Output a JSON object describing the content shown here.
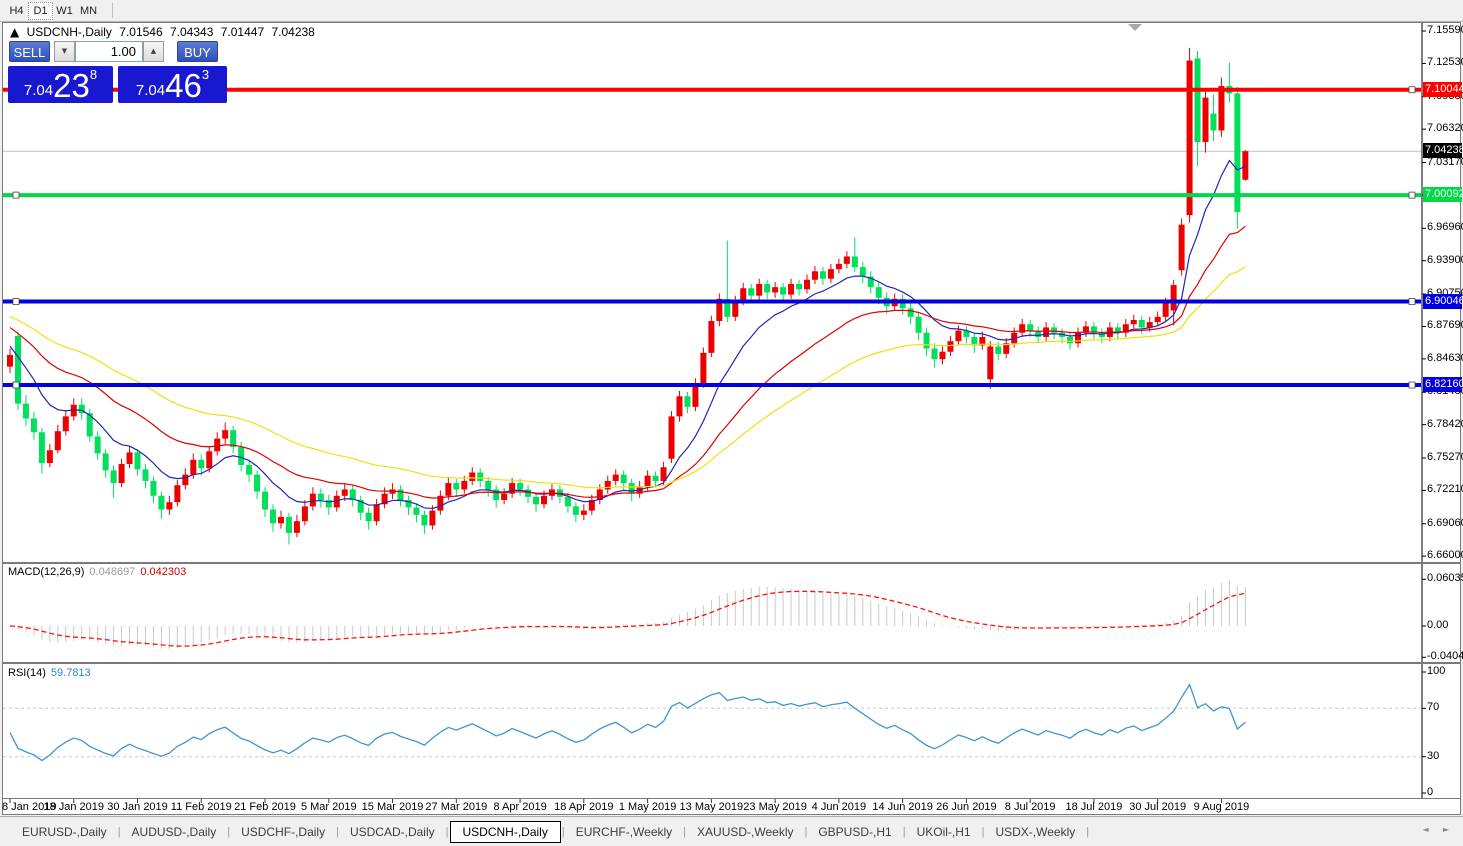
{
  "toolbar": {
    "timeframes": [
      {
        "label": "H4",
        "active": false
      },
      {
        "label": "D1",
        "active": true
      },
      {
        "label": "W1",
        "active": false
      },
      {
        "label": "MN",
        "active": false
      }
    ]
  },
  "chart_header": {
    "collapse_icon": "▲",
    "symbol": "USDCNH-,Daily",
    "open": "7.01546",
    "high": "7.04343",
    "low": "7.01447",
    "close": "7.04238"
  },
  "trade_panel": {
    "sell_label": "SELL",
    "buy_label": "BUY",
    "volume": "1.00",
    "down_arrow": "▼",
    "up_arrow": "▲",
    "sell_price": {
      "prefix": "7.04",
      "big": "23",
      "sup": "8"
    },
    "buy_price": {
      "prefix": "7.04",
      "big": "46",
      "sup": "3"
    }
  },
  "chart_data": {
    "type": "candlestick",
    "symbol": "USDCNH",
    "timeframe": "Daily",
    "colors": {
      "bull_candle": "#ec0000",
      "bear_candle": "#00e05c",
      "ma_fast": "#2323b4",
      "ma_mid": "#e00000",
      "ma_slow": "#f0e010",
      "macd_histogram": "#c9c9c9",
      "macd_signal": "#ff1010",
      "rsi_line": "#3e96d2",
      "current_price_line": "#c0c0c0"
    },
    "y_axis": {
      "range": [
        6.66,
        7.1559
      ],
      "current_price": 7.04238,
      "current_price_label": "7.04238",
      "ticks": [
        "7.15590",
        "7.12530",
        "7.09380",
        "7.06320",
        "7.03170",
        "7.00110",
        "6.96960",
        "6.93900",
        "6.90750",
        "6.87690",
        "6.84630",
        "6.81480",
        "6.78420",
        "6.75270",
        "6.72210",
        "6.69060",
        "6.66000"
      ]
    },
    "x_axis": {
      "labels": [
        {
          "text": "8 Jan 2019",
          "bar": 0
        },
        {
          "text": "18 Jan 2019",
          "bar": 8
        },
        {
          "text": "30 Jan 2019",
          "bar": 16
        },
        {
          "text": "11 Feb 2019",
          "bar": 24
        },
        {
          "text": "21 Feb 2019",
          "bar": 32
        },
        {
          "text": "5 Mar 2019",
          "bar": 40
        },
        {
          "text": "15 Mar 2019",
          "bar": 48
        },
        {
          "text": "27 Mar 2019",
          "bar": 56
        },
        {
          "text": "8 Apr 2019",
          "bar": 64
        },
        {
          "text": "18 Apr 2019",
          "bar": 72
        },
        {
          "text": "1 May 2019",
          "bar": 80
        },
        {
          "text": "13 May 2019",
          "bar": 88
        },
        {
          "text": "23 May 2019",
          "bar": 96
        },
        {
          "text": "4 Jun 2019",
          "bar": 104
        },
        {
          "text": "14 Jun 2019",
          "bar": 112
        },
        {
          "text": "26 Jun 2019",
          "bar": 120
        },
        {
          "text": "8 Jul 2019",
          "bar": 128
        },
        {
          "text": "18 Jul 2019",
          "bar": 136
        },
        {
          "text": "30 Jul 2019",
          "bar": 144
        },
        {
          "text": "9 Aug 2019",
          "bar": 152
        }
      ]
    },
    "horizontal_lines": [
      {
        "price": 7.10044,
        "label": "7.10044",
        "color": "#ff0000",
        "text_color": "#ffffff"
      },
      {
        "price": 7.00092,
        "label": "7.00092",
        "color": "#00d848",
        "text_color": "#ffffff"
      },
      {
        "price": 6.90046,
        "label": "6.90046",
        "color": "#0000e0",
        "text_color": "#ffffff"
      },
      {
        "price": 6.8216,
        "label": "6.82160",
        "color": "#0000e0",
        "text_color": "#ffffff"
      }
    ],
    "moving_averages": [
      {
        "color": "#2323b4",
        "period": 10
      },
      {
        "color": "#e00000",
        "period": 25
      },
      {
        "color": "#f0e010",
        "period": 45
      }
    ],
    "candles": [
      [
        6.839,
        6.856,
        6.833,
        6.85
      ],
      [
        6.868,
        6.872,
        6.798,
        6.804
      ],
      [
        6.804,
        6.812,
        6.783,
        6.79
      ],
      [
        6.79,
        6.796,
        6.77,
        6.777
      ],
      [
        6.777,
        6.781,
        6.738,
        6.748
      ],
      [
        6.748,
        6.766,
        6.744,
        6.76
      ],
      [
        6.76,
        6.784,
        6.757,
        6.778
      ],
      [
        6.778,
        6.798,
        6.774,
        6.792
      ],
      [
        6.792,
        6.809,
        6.788,
        6.803
      ],
      [
        6.803,
        6.809,
        6.789,
        6.795
      ],
      [
        6.795,
        6.799,
        6.768,
        6.773
      ],
      [
        6.773,
        6.778,
        6.751,
        6.757
      ],
      [
        6.757,
        6.761,
        6.734,
        6.741
      ],
      [
        6.741,
        6.746,
        6.715,
        6.729
      ],
      [
        6.729,
        6.752,
        6.725,
        6.747
      ],
      [
        6.747,
        6.764,
        6.743,
        6.758
      ],
      [
        6.758,
        6.761,
        6.736,
        6.742
      ],
      [
        6.742,
        6.747,
        6.724,
        6.731
      ],
      [
        6.731,
        6.735,
        6.71,
        6.717
      ],
      [
        6.717,
        6.721,
        6.695,
        6.704
      ],
      [
        6.704,
        6.717,
        6.699,
        6.711
      ],
      [
        6.711,
        6.732,
        6.707,
        6.727
      ],
      [
        6.727,
        6.743,
        6.723,
        6.737
      ],
      [
        6.737,
        6.757,
        6.733,
        6.751
      ],
      [
        6.751,
        6.756,
        6.736,
        6.743
      ],
      [
        6.743,
        6.764,
        6.739,
        6.759
      ],
      [
        6.759,
        6.777,
        6.755,
        6.771
      ],
      [
        6.771,
        6.786,
        6.766,
        6.779
      ],
      [
        6.779,
        6.783,
        6.757,
        6.763
      ],
      [
        6.763,
        6.768,
        6.74,
        6.746
      ],
      [
        6.746,
        6.751,
        6.73,
        6.737
      ],
      [
        6.737,
        6.741,
        6.714,
        6.721
      ],
      [
        6.721,
        6.725,
        6.697,
        6.704
      ],
      [
        6.704,
        6.709,
        6.683,
        6.691
      ],
      [
        6.691,
        6.703,
        6.686,
        6.697
      ],
      [
        6.697,
        6.701,
        6.671,
        6.682
      ],
      [
        6.682,
        6.699,
        6.678,
        6.693
      ],
      [
        6.693,
        6.713,
        6.689,
        6.707
      ],
      [
        6.707,
        6.725,
        6.703,
        6.719
      ],
      [
        6.719,
        6.724,
        6.706,
        6.713
      ],
      [
        6.713,
        6.718,
        6.699,
        6.706
      ],
      [
        6.706,
        6.722,
        6.702,
        6.717
      ],
      [
        6.717,
        6.729,
        6.712,
        6.723
      ],
      [
        6.723,
        6.727,
        6.707,
        6.713
      ],
      [
        6.713,
        6.717,
        6.694,
        6.701
      ],
      [
        6.701,
        6.706,
        6.685,
        6.693
      ],
      [
        6.693,
        6.714,
        6.689,
        6.709
      ],
      [
        6.709,
        6.725,
        6.705,
        6.719
      ],
      [
        6.719,
        6.729,
        6.714,
        6.723
      ],
      [
        6.723,
        6.727,
        6.707,
        6.713
      ],
      [
        6.713,
        6.717,
        6.699,
        6.706
      ],
      [
        6.706,
        6.71,
        6.692,
        6.699
      ],
      [
        6.699,
        6.703,
        6.681,
        6.689
      ],
      [
        6.689,
        6.708,
        6.685,
        6.703
      ],
      [
        6.703,
        6.722,
        6.699,
        6.717
      ],
      [
        6.717,
        6.734,
        6.713,
        6.729
      ],
      [
        6.729,
        6.733,
        6.716,
        6.723
      ],
      [
        6.723,
        6.736,
        6.719,
        6.731
      ],
      [
        6.731,
        6.744,
        6.727,
        6.739
      ],
      [
        6.739,
        6.743,
        6.725,
        6.731
      ],
      [
        6.731,
        6.735,
        6.716,
        6.723
      ],
      [
        6.723,
        6.727,
        6.706,
        6.713
      ],
      [
        6.713,
        6.724,
        6.709,
        6.719
      ],
      [
        6.719,
        6.734,
        6.715,
        6.729
      ],
      [
        6.729,
        6.733,
        6.717,
        6.723
      ],
      [
        6.723,
        6.727,
        6.71,
        6.716
      ],
      [
        6.716,
        6.72,
        6.702,
        6.709
      ],
      [
        6.709,
        6.722,
        6.705,
        6.717
      ],
      [
        6.717,
        6.728,
        6.713,
        6.723
      ],
      [
        6.723,
        6.727,
        6.71,
        6.716
      ],
      [
        6.716,
        6.72,
        6.701,
        6.707
      ],
      [
        6.707,
        6.711,
        6.692,
        6.699
      ],
      [
        6.699,
        6.709,
        6.694,
        6.703
      ],
      [
        6.703,
        6.718,
        6.699,
        6.713
      ],
      [
        6.713,
        6.728,
        6.709,
        6.723
      ],
      [
        6.723,
        6.736,
        6.719,
        6.731
      ],
      [
        6.731,
        6.742,
        6.727,
        6.737
      ],
      [
        6.737,
        6.741,
        6.723,
        6.729
      ],
      [
        6.729,
        6.733,
        6.712,
        6.719
      ],
      [
        6.719,
        6.731,
        6.715,
        6.726
      ],
      [
        6.726,
        6.741,
        6.722,
        6.736
      ],
      [
        6.736,
        6.74,
        6.725,
        6.731
      ],
      [
        6.731,
        6.749,
        6.727,
        6.744
      ],
      [
        6.752,
        6.797,
        6.748,
        6.792
      ],
      [
        6.792,
        6.816,
        6.787,
        6.811
      ],
      [
        6.811,
        6.815,
        6.795,
        6.801
      ],
      [
        6.801,
        6.828,
        6.797,
        6.823
      ],
      [
        6.823,
        6.857,
        6.819,
        6.852
      ],
      [
        6.852,
        6.887,
        6.848,
        6.882
      ],
      [
        6.882,
        6.908,
        6.877,
        6.903
      ],
      [
        6.903,
        6.958,
        6.881,
        6.886
      ],
      [
        6.886,
        6.906,
        6.882,
        6.901
      ],
      [
        6.901,
        6.918,
        6.897,
        6.913
      ],
      [
        6.913,
        6.917,
        6.899,
        6.906
      ],
      [
        6.906,
        6.922,
        6.902,
        6.917
      ],
      [
        6.917,
        6.921,
        6.903,
        6.909
      ],
      [
        6.909,
        6.919,
        6.904,
        6.914
      ],
      [
        6.914,
        6.918,
        6.901,
        6.907
      ],
      [
        6.907,
        6.922,
        6.903,
        6.917
      ],
      [
        6.917,
        6.921,
        6.906,
        6.912
      ],
      [
        6.912,
        6.926,
        6.908,
        6.921
      ],
      [
        6.921,
        6.934,
        6.917,
        6.929
      ],
      [
        6.929,
        6.933,
        6.916,
        6.922
      ],
      [
        6.922,
        6.936,
        6.918,
        6.931
      ],
      [
        6.931,
        6.941,
        6.927,
        6.936
      ],
      [
        6.936,
        6.948,
        6.932,
        6.943
      ],
      [
        6.943,
        6.961,
        6.928,
        6.933
      ],
      [
        6.933,
        6.938,
        6.918,
        6.924
      ],
      [
        6.924,
        6.929,
        6.908,
        6.914
      ],
      [
        6.914,
        6.919,
        6.898,
        6.904
      ],
      [
        6.904,
        6.909,
        6.889,
        6.896
      ],
      [
        6.896,
        6.908,
        6.892,
        6.903
      ],
      [
        6.903,
        6.907,
        6.888,
        6.894
      ],
      [
        6.894,
        6.899,
        6.879,
        6.886
      ],
      [
        6.886,
        6.891,
        6.864,
        6.871
      ],
      [
        6.871,
        6.876,
        6.849,
        6.856
      ],
      [
        6.856,
        6.861,
        6.838,
        6.846
      ],
      [
        6.846,
        6.858,
        6.841,
        6.853
      ],
      [
        6.853,
        6.868,
        6.849,
        6.863
      ],
      [
        6.863,
        6.878,
        6.859,
        6.873
      ],
      [
        6.873,
        6.877,
        6.861,
        6.867
      ],
      [
        6.867,
        6.871,
        6.852,
        6.859
      ],
      [
        6.859,
        6.872,
        6.855,
        6.867
      ],
      [
        6.827,
        6.863,
        6.818,
        6.858
      ],
      [
        6.858,
        6.862,
        6.845,
        6.851
      ],
      [
        6.851,
        6.866,
        6.847,
        6.861
      ],
      [
        6.861,
        6.876,
        6.857,
        6.871
      ],
      [
        6.871,
        6.884,
        6.867,
        6.879
      ],
      [
        6.879,
        6.883,
        6.867,
        6.873
      ],
      [
        6.873,
        6.877,
        6.861,
        6.867
      ],
      [
        6.867,
        6.881,
        6.863,
        6.876
      ],
      [
        6.876,
        6.88,
        6.865,
        6.871
      ],
      [
        6.871,
        6.875,
        6.861,
        6.867
      ],
      [
        6.867,
        6.871,
        6.855,
        6.861
      ],
      [
        6.861,
        6.876,
        6.857,
        6.871
      ],
      [
        6.871,
        6.882,
        6.867,
        6.877
      ],
      [
        6.877,
        6.881,
        6.865,
        6.871
      ],
      [
        6.871,
        6.875,
        6.861,
        6.867
      ],
      [
        6.867,
        6.881,
        6.863,
        6.876
      ],
      [
        6.876,
        6.88,
        6.865,
        6.871
      ],
      [
        6.871,
        6.884,
        6.867,
        6.879
      ],
      [
        6.879,
        6.888,
        6.875,
        6.883
      ],
      [
        6.883,
        6.887,
        6.87,
        6.876
      ],
      [
        6.876,
        6.886,
        6.872,
        6.881
      ],
      [
        6.881,
        6.891,
        6.877,
        6.886
      ],
      [
        6.886,
        6.904,
        6.882,
        6.899
      ],
      [
        6.892,
        6.921,
        6.878,
        6.916
      ],
      [
        6.93,
        6.979,
        6.925,
        6.973
      ],
      [
        6.982,
        7.14,
        6.975,
        7.128
      ],
      [
        7.13,
        7.137,
        7.028,
        7.051
      ],
      [
        7.051,
        7.101,
        7.041,
        7.093
      ],
      [
        7.078,
        7.096,
        7.052,
        7.062
      ],
      [
        7.062,
        7.112,
        7.056,
        7.104
      ],
      [
        7.104,
        7.126,
        7.088,
        7.097
      ],
      [
        7.097,
        7.103,
        6.969,
        6.985
      ],
      [
        7.01546,
        7.04343,
        7.01447,
        7.04238
      ]
    ],
    "macd": {
      "label": "MACD(12,26,9)",
      "fast": 12,
      "slow": 26,
      "signal_period": 9,
      "value": "0.048697",
      "signal_value": "0.042303",
      "axis": {
        "max": "0.060356",
        "max_v": 0.060356,
        "zero": "0.00",
        "min": "-0.040416",
        "min_v": -0.040416
      }
    },
    "rsi": {
      "label": "RSI(14)",
      "period": 14,
      "value": "59.7813",
      "levels": [
        70,
        30
      ],
      "axis": [
        {
          "text": "100",
          "v": 100
        },
        {
          "text": "70",
          "v": 70
        },
        {
          "text": "30",
          "v": 30
        },
        {
          "text": "0",
          "v": 0
        }
      ]
    }
  },
  "tabbar": {
    "left_arrow": "◄",
    "right_arrow": "►",
    "tabs": [
      {
        "label": "EURUSD-,Daily",
        "active": false
      },
      {
        "label": "AUDUSD-,Daily",
        "active": false
      },
      {
        "label": "USDCHF-,Daily",
        "active": false
      },
      {
        "label": "USDCAD-,Daily",
        "active": false
      },
      {
        "label": "USDCNH-,Daily",
        "active": true
      },
      {
        "label": "EURCHF-,Weekly",
        "active": false
      },
      {
        "label": "XAUUSD-,Weekly",
        "active": false
      },
      {
        "label": "GBPUSD-,H1",
        "active": false
      },
      {
        "label": "UKOil-,H1",
        "active": false
      },
      {
        "label": "USDX-,Weekly",
        "active": false
      }
    ]
  }
}
